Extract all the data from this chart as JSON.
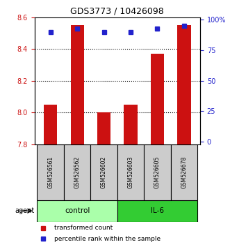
{
  "title": "GDS3773 / 10426098",
  "samples": [
    "GSM526561",
    "GSM526562",
    "GSM526602",
    "GSM526603",
    "GSM526605",
    "GSM526678"
  ],
  "bar_values": [
    8.05,
    8.55,
    8.0,
    8.05,
    8.37,
    8.55
  ],
  "percentile_values": [
    90,
    93,
    90,
    90,
    93,
    95
  ],
  "y_min": 7.8,
  "y_max": 8.6,
  "y_ticks": [
    7.8,
    8.0,
    8.2,
    8.4,
    8.6
  ],
  "right_y_ticks": [
    0,
    25,
    50,
    75,
    100
  ],
  "right_y_labels": [
    "0",
    "25",
    "50",
    "75",
    "100%"
  ],
  "bar_color": "#cc1111",
  "dot_color": "#2222cc",
  "groups": [
    {
      "label": "control",
      "indices": [
        0,
        1,
        2
      ],
      "color": "#aaffaa"
    },
    {
      "label": "IL-6",
      "indices": [
        3,
        4,
        5
      ],
      "color": "#33cc33"
    }
  ],
  "agent_label": "agent",
  "legend_items": [
    {
      "label": "transformed count",
      "color": "#cc1111"
    },
    {
      "label": "percentile rank within the sample",
      "color": "#2222cc"
    }
  ],
  "sample_box_color": "#cccccc",
  "grid_color": "#000000",
  "grid_style": "dotted"
}
